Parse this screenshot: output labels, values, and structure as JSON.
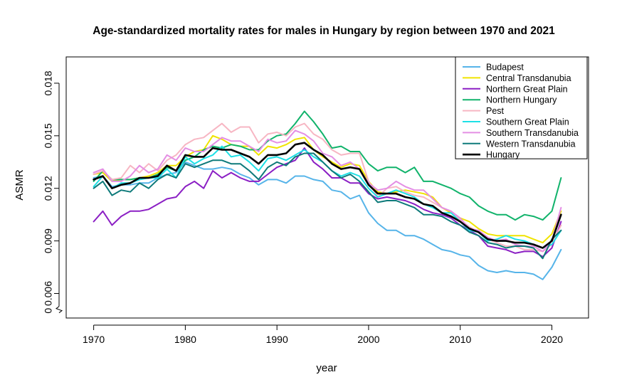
{
  "chart_data": {
    "type": "line",
    "title": "Age-standardized mortality rates for males in Hungary by region between 1970 and 2021",
    "xlabel": "year",
    "ylabel": "ASMR",
    "xlim": [
      1967,
      2024
    ],
    "ylim": [
      0.0046,
      0.0195
    ],
    "axis_break": "y-axis break below 0.006",
    "x_ticks": [
      1970,
      1980,
      1990,
      2000,
      2010,
      2020
    ],
    "x_tick_labels": [
      "1970",
      "1980",
      "1990",
      "2000",
      "2010",
      "2020"
    ],
    "y_ticks": [
      0.006,
      0.009,
      0.012,
      0.015,
      0.018
    ],
    "y_tick_labels": [
      "0.006",
      "0.009",
      "0.012",
      "0.015",
      "0.018"
    ],
    "y_extra_tick_label": "0",
    "grid": false,
    "legend_position": "top-right",
    "x": [
      1970,
      1971,
      1972,
      1973,
      1974,
      1975,
      1976,
      1977,
      1978,
      1979,
      1980,
      1981,
      1982,
      1983,
      1984,
      1985,
      1986,
      1987,
      1988,
      1989,
      1990,
      1991,
      1992,
      1993,
      1994,
      1995,
      1996,
      1997,
      1998,
      1999,
      2000,
      2001,
      2002,
      2003,
      2004,
      2005,
      2006,
      2007,
      2008,
      2009,
      2010,
      2011,
      2012,
      2013,
      2014,
      2015,
      2016,
      2017,
      2018,
      2019,
      2020,
      2021
    ],
    "series": [
      {
        "name": "Budapest",
        "color": "#56B4E9",
        "width": 2,
        "values": [
          0.0126,
          0.0127,
          0.0121,
          0.0122,
          0.0122,
          0.0123,
          0.0123,
          0.0126,
          0.0128,
          0.0129,
          0.0135,
          0.0133,
          0.0131,
          0.0131,
          0.0132,
          0.0131,
          0.0128,
          0.0126,
          0.0122,
          0.0125,
          0.0125,
          0.0123,
          0.0127,
          0.0127,
          0.0125,
          0.0124,
          0.0119,
          0.0118,
          0.0114,
          0.0116,
          0.0106,
          0.01,
          0.0096,
          0.0096,
          0.0093,
          0.0093,
          0.0091,
          0.0088,
          0.0085,
          0.0084,
          0.0082,
          0.0081,
          0.0076,
          0.0073,
          0.0072,
          0.0073,
          0.0072,
          0.0072,
          0.0071,
          0.0068,
          0.0075,
          0.0085
        ]
      },
      {
        "name": "Central Transdanubia",
        "color": "#F0E400",
        "width": 2,
        "values": [
          0.0128,
          0.0129,
          0.0124,
          0.0125,
          0.0125,
          0.0126,
          0.0127,
          0.0129,
          0.0133,
          0.0133,
          0.0138,
          0.0141,
          0.0142,
          0.015,
          0.0148,
          0.0145,
          0.0144,
          0.0144,
          0.0139,
          0.0144,
          0.0143,
          0.0145,
          0.0148,
          0.0149,
          0.0142,
          0.0138,
          0.0135,
          0.0132,
          0.0134,
          0.0133,
          0.0124,
          0.0118,
          0.0117,
          0.0118,
          0.0119,
          0.0118,
          0.0117,
          0.0115,
          0.0109,
          0.0106,
          0.0103,
          0.0101,
          0.0097,
          0.0094,
          0.0093,
          0.0093,
          0.0093,
          0.0093,
          0.0091,
          0.0089,
          0.0094,
          0.0107
        ]
      },
      {
        "name": "Northern Great Plain",
        "color": "#8B1FC4",
        "width": 2,
        "values": [
          0.0101,
          0.0107,
          0.0099,
          0.0104,
          0.0107,
          0.0107,
          0.0108,
          0.0111,
          0.0114,
          0.0115,
          0.0121,
          0.0124,
          0.012,
          0.013,
          0.0126,
          0.0129,
          0.0126,
          0.0124,
          0.0124,
          0.0128,
          0.0132,
          0.0134,
          0.0136,
          0.0143,
          0.0135,
          0.0131,
          0.0126,
          0.0126,
          0.0123,
          0.0123,
          0.0117,
          0.0114,
          0.0115,
          0.0114,
          0.0113,
          0.0111,
          0.0108,
          0.0106,
          0.0105,
          0.0103,
          0.0099,
          0.0096,
          0.0093,
          0.0087,
          0.0086,
          0.0085,
          0.0083,
          0.0084,
          0.0084,
          0.0081,
          0.0086,
          0.0101
        ]
      },
      {
        "name": "Northern Hungary",
        "color": "#11B36B",
        "width": 2,
        "values": [
          0.0124,
          0.013,
          0.0125,
          0.0125,
          0.0125,
          0.0126,
          0.0126,
          0.0128,
          0.0132,
          0.013,
          0.0136,
          0.0138,
          0.0142,
          0.0144,
          0.0143,
          0.0145,
          0.0144,
          0.0142,
          0.0142,
          0.0147,
          0.015,
          0.0151,
          0.0157,
          0.0164,
          0.0158,
          0.0151,
          0.0143,
          0.0144,
          0.0141,
          0.0141,
          0.0134,
          0.013,
          0.0132,
          0.0132,
          0.0129,
          0.0132,
          0.0124,
          0.0124,
          0.0122,
          0.012,
          0.0117,
          0.0115,
          0.011,
          0.0107,
          0.0105,
          0.0105,
          0.0102,
          0.0105,
          0.0104,
          0.0102,
          0.0107,
          0.0126
        ]
      },
      {
        "name": "Pest",
        "color": "#F7B6C3",
        "width": 2,
        "values": [
          0.0128,
          0.013,
          0.0125,
          0.0126,
          0.0133,
          0.0129,
          0.0134,
          0.013,
          0.0136,
          0.0139,
          0.0145,
          0.0148,
          0.0149,
          0.0153,
          0.0157,
          0.0152,
          0.0155,
          0.0155,
          0.0146,
          0.0151,
          0.0152,
          0.015,
          0.0155,
          0.0157,
          0.0151,
          0.0148,
          0.0142,
          0.0139,
          0.014,
          0.014,
          0.0124,
          0.0115,
          0.012,
          0.0121,
          0.0118,
          0.0116,
          0.0115,
          0.0112,
          0.0109,
          0.0107,
          0.0102,
          0.0098,
          0.0095,
          0.0091,
          0.0089,
          0.0087,
          0.0087,
          0.0085,
          0.0085,
          0.0084,
          0.0088,
          0.0099
        ]
      },
      {
        "name": "Southern Great Plain",
        "color": "#1EE0E6",
        "width": 2,
        "values": [
          0.0121,
          0.0127,
          0.012,
          0.0123,
          0.0123,
          0.0125,
          0.0126,
          0.0126,
          0.0131,
          0.0126,
          0.0138,
          0.0134,
          0.0137,
          0.0139,
          0.0144,
          0.0138,
          0.0139,
          0.0135,
          0.013,
          0.0137,
          0.0138,
          0.0136,
          0.0139,
          0.0142,
          0.0138,
          0.0135,
          0.013,
          0.0127,
          0.0129,
          0.0127,
          0.012,
          0.0115,
          0.0117,
          0.0119,
          0.0117,
          0.0115,
          0.0111,
          0.0109,
          0.0106,
          0.0106,
          0.0101,
          0.0096,
          0.0095,
          0.009,
          0.0091,
          0.0093,
          0.0091,
          0.009,
          0.0088,
          0.0086,
          0.0088,
          0.0096
        ]
      },
      {
        "name": "Southern Transdanubia",
        "color": "#E48FE4",
        "width": 2,
        "values": [
          0.0129,
          0.0131,
          0.0124,
          0.0124,
          0.0127,
          0.0133,
          0.0129,
          0.0131,
          0.0139,
          0.0136,
          0.0143,
          0.0141,
          0.0141,
          0.0145,
          0.0149,
          0.0147,
          0.0147,
          0.0144,
          0.0141,
          0.0148,
          0.0146,
          0.0147,
          0.0153,
          0.0151,
          0.0147,
          0.014,
          0.0138,
          0.0133,
          0.0135,
          0.0131,
          0.0123,
          0.0119,
          0.012,
          0.0124,
          0.0121,
          0.0119,
          0.0119,
          0.0114,
          0.0109,
          0.0107,
          0.0103,
          0.0097,
          0.0096,
          0.0092,
          0.009,
          0.0091,
          0.0088,
          0.0087,
          0.0087,
          0.0084,
          0.009,
          0.0109
        ]
      },
      {
        "name": "Western Transdanubia",
        "color": "#0E7A7A",
        "width": 2,
        "values": [
          0.012,
          0.0124,
          0.0116,
          0.0119,
          0.0118,
          0.0123,
          0.012,
          0.0125,
          0.0128,
          0.0126,
          0.0134,
          0.0132,
          0.0134,
          0.0136,
          0.0136,
          0.0134,
          0.0134,
          0.013,
          0.0125,
          0.0132,
          0.0135,
          0.0133,
          0.0138,
          0.014,
          0.014,
          0.0135,
          0.013,
          0.0126,
          0.0128,
          0.0124,
          0.0118,
          0.0112,
          0.0113,
          0.0113,
          0.0111,
          0.0109,
          0.0105,
          0.0105,
          0.0104,
          0.0101,
          0.0099,
          0.0095,
          0.0093,
          0.0089,
          0.0088,
          0.0086,
          0.0087,
          0.0087,
          0.0086,
          0.008,
          0.0091,
          0.0096
        ]
      },
      {
        "name": "Hungary",
        "color": "#000000",
        "width": 2.6,
        "values": [
          0.0125,
          0.0127,
          0.012,
          0.0122,
          0.0123,
          0.0126,
          0.0126,
          0.0127,
          0.0133,
          0.013,
          0.0139,
          0.0138,
          0.0138,
          0.0143,
          0.0142,
          0.0142,
          0.014,
          0.0138,
          0.0134,
          0.0139,
          0.0139,
          0.014,
          0.0145,
          0.0146,
          0.0142,
          0.0139,
          0.0134,
          0.0131,
          0.0132,
          0.0131,
          0.0122,
          0.0117,
          0.0117,
          0.0117,
          0.0115,
          0.0114,
          0.0111,
          0.011,
          0.0106,
          0.0104,
          0.0101,
          0.0097,
          0.0095,
          0.0091,
          0.009,
          0.009,
          0.0089,
          0.0089,
          0.0088,
          0.0086,
          0.009,
          0.0105
        ]
      }
    ]
  }
}
